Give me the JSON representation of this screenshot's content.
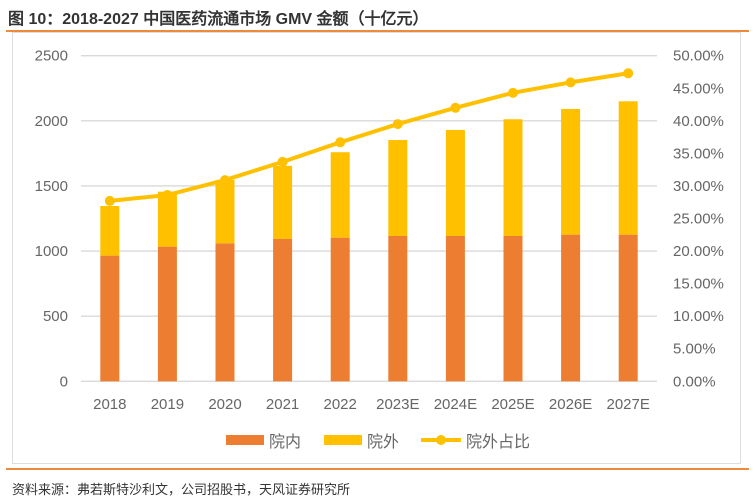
{
  "title": "图 10：2018-2027 中国医药流通市场 GMV 金额（十亿元）",
  "source": "资料来源：弗若斯特沙利文，公司招股书，天风证券研究所",
  "colors": {
    "inner": "#ed7d31",
    "outer": "#ffc000",
    "line": "#ffc000",
    "rule": "#ee8a3c",
    "grid": "#d9d9d9"
  },
  "chart_data": {
    "type": "bar",
    "stacked": true,
    "title": "图 10：2018-2027 中国医药流通市场 GMV 金额（十亿元）",
    "categories": [
      "2018",
      "2019",
      "2020",
      "2021",
      "2022",
      "2023E",
      "2024E",
      "2025E",
      "2026E",
      "2027E"
    ],
    "series": [
      {
        "name": "院内",
        "type": "bar",
        "axis": "left",
        "values": [
          965,
          1034,
          1060,
          1093,
          1103,
          1116,
          1116,
          1116,
          1126,
          1126
        ]
      },
      {
        "name": "院外",
        "type": "bar",
        "axis": "left",
        "values": [
          381,
          422,
          486,
          561,
          656,
          737,
          814,
          896,
          965,
          1024
        ]
      },
      {
        "name": "院外占比",
        "type": "line",
        "axis": "right",
        "values": [
          27.7,
          28.6,
          30.9,
          33.7,
          36.7,
          39.5,
          42.0,
          44.3,
          45.9,
          47.3
        ]
      }
    ],
    "ylim": [
      0,
      2500
    ],
    "yticks": [
      "0",
      "500",
      "1000",
      "1500",
      "2000",
      "2500"
    ],
    "y2lim": [
      0,
      50
    ],
    "y2ticks": [
      "0.00%",
      "5.00%",
      "10.00%",
      "15.00%",
      "20.00%",
      "25.00%",
      "30.00%",
      "35.00%",
      "40.00%",
      "45.00%",
      "50.00%"
    ],
    "grid": true,
    "legend": "bottom"
  }
}
